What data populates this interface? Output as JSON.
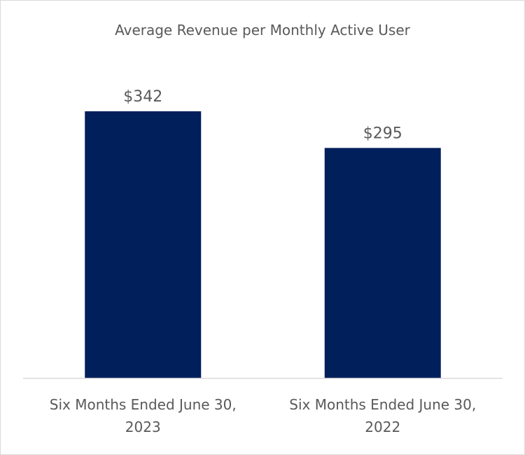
{
  "chart_data": {
    "type": "bar",
    "title": "Average Revenue per Monthly Active User",
    "categories": [
      [
        "Six Months Ended June 30,",
        "2023"
      ],
      [
        "Six Months Ended June 30,",
        "2022"
      ]
    ],
    "values": [
      342,
      295
    ],
    "value_labels": [
      "$342",
      "$295"
    ],
    "xlabel": "",
    "ylabel": "",
    "ylim": [
      0,
      400
    ],
    "grid": false,
    "legend": "none",
    "bar_color": "#001f5b",
    "axis_color": "#d9d9d9",
    "text_color": "#595959"
  }
}
